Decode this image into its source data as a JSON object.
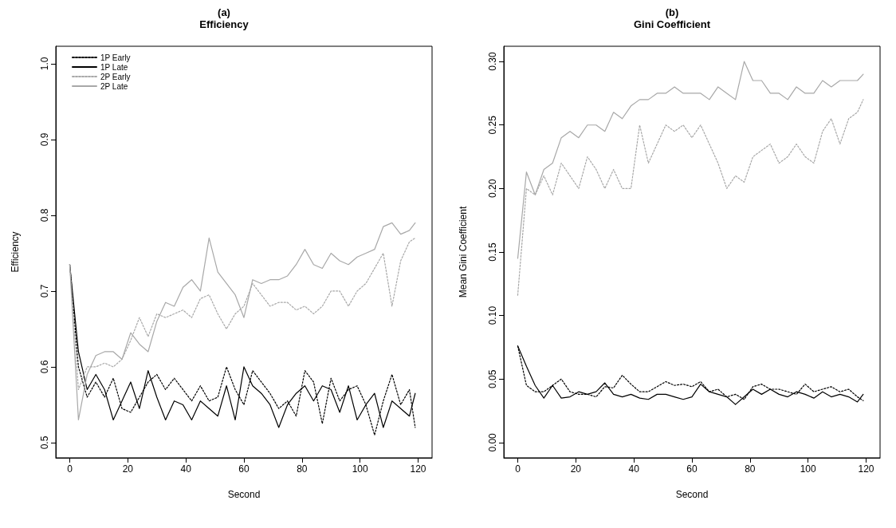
{
  "chart_data": [
    {
      "type": "line",
      "title": "(a)",
      "subtitle": "Efficiency",
      "xlabel": "Second",
      "ylabel": "Efficiency",
      "x": [
        0,
        3,
        6,
        9,
        12,
        15,
        18,
        21,
        24,
        27,
        30,
        33,
        36,
        39,
        42,
        45,
        48,
        51,
        54,
        57,
        60,
        63,
        66,
        69,
        72,
        75,
        78,
        81,
        84,
        87,
        90,
        93,
        96,
        99,
        102,
        105,
        108,
        111,
        114,
        117,
        119
      ],
      "series": [
        {
          "name": "1P Early",
          "color": "#000000",
          "line_style": "dotted",
          "values": [
            0.735,
            0.6,
            0.56,
            0.58,
            0.56,
            0.585,
            0.545,
            0.54,
            0.56,
            0.58,
            0.59,
            0.57,
            0.585,
            0.57,
            0.555,
            0.575,
            0.555,
            0.56,
            0.6,
            0.57,
            0.55,
            0.595,
            0.58,
            0.565,
            0.545,
            0.555,
            0.535,
            0.595,
            0.58,
            0.525,
            0.585,
            0.555,
            0.57,
            0.575,
            0.55,
            0.51,
            0.555,
            0.59,
            0.55,
            0.57,
            0.52
          ]
        },
        {
          "name": "1P Late",
          "color": "#000000",
          "line_style": "solid",
          "values": [
            0.735,
            0.62,
            0.57,
            0.59,
            0.57,
            0.53,
            0.555,
            0.58,
            0.545,
            0.595,
            0.56,
            0.53,
            0.555,
            0.55,
            0.53,
            0.555,
            0.545,
            0.535,
            0.575,
            0.53,
            0.6,
            0.575,
            0.565,
            0.55,
            0.52,
            0.55,
            0.565,
            0.575,
            0.555,
            0.575,
            0.57,
            0.54,
            0.575,
            0.53,
            0.55,
            0.565,
            0.52,
            0.555,
            0.545,
            0.535,
            0.565
          ]
        },
        {
          "name": "2P Early",
          "color": "#a8a8a8",
          "line_style": "dotted",
          "values": [
            0.735,
            0.57,
            0.6,
            0.6,
            0.605,
            0.6,
            0.61,
            0.635,
            0.665,
            0.64,
            0.67,
            0.665,
            0.67,
            0.675,
            0.665,
            0.69,
            0.695,
            0.67,
            0.65,
            0.67,
            0.68,
            0.71,
            0.695,
            0.68,
            0.685,
            0.685,
            0.675,
            0.68,
            0.67,
            0.68,
            0.7,
            0.7,
            0.68,
            0.7,
            0.71,
            0.73,
            0.75,
            0.68,
            0.74,
            0.765,
            0.77
          ]
        },
        {
          "name": "2P Late",
          "color": "#a8a8a8",
          "line_style": "solid",
          "values": [
            0.735,
            0.53,
            0.59,
            0.615,
            0.62,
            0.62,
            0.61,
            0.645,
            0.63,
            0.62,
            0.66,
            0.685,
            0.68,
            0.705,
            0.715,
            0.7,
            0.77,
            0.725,
            0.71,
            0.695,
            0.665,
            0.715,
            0.71,
            0.715,
            0.715,
            0.72,
            0.735,
            0.755,
            0.735,
            0.73,
            0.75,
            0.74,
            0.735,
            0.745,
            0.75,
            0.755,
            0.785,
            0.79,
            0.775,
            0.78,
            0.79
          ]
        }
      ],
      "xlim": [
        -4.8,
        124.8
      ],
      "xticks": [
        0,
        20,
        40,
        60,
        80,
        100,
        120
      ],
      "ylim": [
        0.48,
        1.023
      ],
      "yticks": [
        0.5,
        0.6,
        0.7,
        0.8,
        0.9,
        {
          "value": 1,
          "label": "1.0"
        }
      ],
      "grid": false,
      "legend": "top left",
      "marker": "none"
    },
    {
      "type": "line",
      "title": "(b)",
      "subtitle": "Gini Coefficient",
      "xlabel": "Second",
      "ylabel": "Mean Gini Coefficient",
      "x": [
        0,
        3,
        6,
        9,
        12,
        15,
        18,
        21,
        24,
        27,
        30,
        33,
        36,
        39,
        42,
        45,
        48,
        51,
        54,
        57,
        60,
        63,
        66,
        69,
        72,
        75,
        78,
        81,
        84,
        87,
        90,
        93,
        96,
        99,
        102,
        105,
        108,
        111,
        114,
        117,
        119
      ],
      "series": [
        {
          "color": "#000000",
          "line_style": "dotted",
          "values": [
            0.076,
            0.045,
            0.04,
            0.04,
            0.045,
            0.05,
            0.04,
            0.038,
            0.038,
            0.036,
            0.044,
            0.043,
            0.053,
            0.046,
            0.04,
            0.04,
            0.044,
            0.048,
            0.045,
            0.046,
            0.044,
            0.048,
            0.04,
            0.042,
            0.036,
            0.038,
            0.034,
            0.044,
            0.046,
            0.042,
            0.042,
            0.04,
            0.038,
            0.046,
            0.04,
            0.042,
            0.044,
            0.04,
            0.042,
            0.036,
            0.033
          ]
        },
        {
          "color": "#000000",
          "line_style": "solid",
          "values": [
            0.076,
            0.06,
            0.045,
            0.035,
            0.045,
            0.035,
            0.036,
            0.04,
            0.038,
            0.04,
            0.047,
            0.038,
            0.036,
            0.038,
            0.035,
            0.034,
            0.038,
            0.038,
            0.036,
            0.034,
            0.036,
            0.046,
            0.04,
            0.038,
            0.036,
            0.03,
            0.036,
            0.042,
            0.038,
            0.042,
            0.038,
            0.036,
            0.04,
            0.038,
            0.035,
            0.04,
            0.036,
            0.038,
            0.036,
            0.032,
            0.038
          ]
        },
        {
          "color": "#a8a8a8",
          "line_style": "dotted",
          "values": [
            0.116,
            0.2,
            0.195,
            0.21,
            0.195,
            0.22,
            0.21,
            0.2,
            0.225,
            0.215,
            0.2,
            0.215,
            0.2,
            0.2,
            0.25,
            0.22,
            0.235,
            0.25,
            0.245,
            0.25,
            0.24,
            0.25,
            0.235,
            0.22,
            0.2,
            0.21,
            0.205,
            0.225,
            0.23,
            0.235,
            0.22,
            0.225,
            0.235,
            0.225,
            0.22,
            0.245,
            0.255,
            0.235,
            0.255,
            0.26,
            0.27
          ]
        },
        {
          "color": "#a8a8a8",
          "line_style": "solid",
          "values": [
            0.145,
            0.213,
            0.195,
            0.215,
            0.22,
            0.24,
            0.245,
            0.24,
            0.25,
            0.25,
            0.245,
            0.26,
            0.255,
            0.265,
            0.27,
            0.27,
            0.275,
            0.275,
            0.28,
            0.275,
            0.275,
            0.275,
            0.27,
            0.28,
            0.275,
            0.27,
            0.3,
            0.285,
            0.285,
            0.275,
            0.275,
            0.27,
            0.28,
            0.275,
            0.275,
            0.285,
            0.28,
            0.285,
            0.285,
            0.285,
            0.29
          ]
        }
      ],
      "xlim": [
        -4.8,
        124.8
      ],
      "xticks": [
        0,
        20,
        40,
        60,
        80,
        100,
        120
      ],
      "ylim": [
        -0.012,
        0.312
      ],
      "yticks": [
        {
          "value": 0,
          "label": "0.00"
        },
        0.05,
        {
          "value": 0.1,
          "label": "0.10"
        },
        0.15,
        {
          "value": 0.2,
          "label": "0.20"
        },
        0.25,
        {
          "value": 0.3,
          "label": "0.30"
        }
      ],
      "grid": false,
      "legend": false,
      "marker": "none"
    }
  ]
}
